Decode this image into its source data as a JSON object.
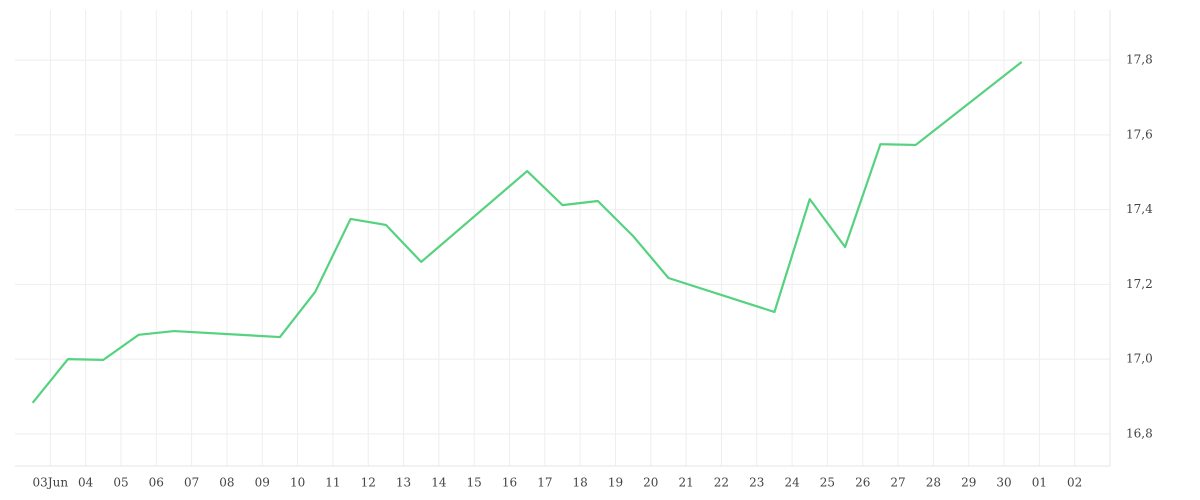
{
  "chart_data": {
    "type": "line",
    "x": [
      2.5,
      3.5,
      4.5,
      5.5,
      6.5,
      9.5,
      10.5,
      11.5,
      12.5,
      13.5,
      16.5,
      17.5,
      18.5,
      19.5,
      20.5,
      23.5,
      24.5,
      25.5,
      26.5,
      27.5,
      30.5
    ],
    "series": [
      {
        "color": "#55d27f",
        "values": [
          16.883,
          17.0,
          16.998,
          17.065,
          17.075,
          17.059,
          17.18,
          17.375,
          17.359,
          17.26,
          17.503,
          17.412,
          17.423,
          17.329,
          17.217,
          17.126,
          17.428,
          17.3,
          17.575,
          17.573,
          17.795
        ]
      }
    ],
    "xlim": [
      2,
      33
    ],
    "xticks": [
      {
        "value": 3,
        "label": "03Jun"
      },
      {
        "value": 4,
        "label": "04"
      },
      {
        "value": 5,
        "label": "05"
      },
      {
        "value": 6,
        "label": "06"
      },
      {
        "value": 7,
        "label": "07"
      },
      {
        "value": 8,
        "label": "08"
      },
      {
        "value": 9,
        "label": "09"
      },
      10,
      11,
      12,
      13,
      14,
      15,
      16,
      17,
      18,
      19,
      20,
      21,
      22,
      23,
      24,
      25,
      26,
      27,
      28,
      29,
      30,
      {
        "value": 31,
        "label": "01"
      },
      {
        "value": 32,
        "label": "02"
      }
    ],
    "ylim": [
      16.714,
      17.934
    ],
    "yticks": [
      {
        "value": 16.8,
        "label": "16,8"
      },
      {
        "value": 17.0,
        "label": "17,0"
      },
      {
        "value": 17.2,
        "label": "17,2"
      },
      {
        "value": 17.4,
        "label": "17,4"
      },
      {
        "value": 17.6,
        "label": "17,6"
      },
      {
        "value": 17.8,
        "label": "17,8"
      }
    ],
    "grid": true
  }
}
